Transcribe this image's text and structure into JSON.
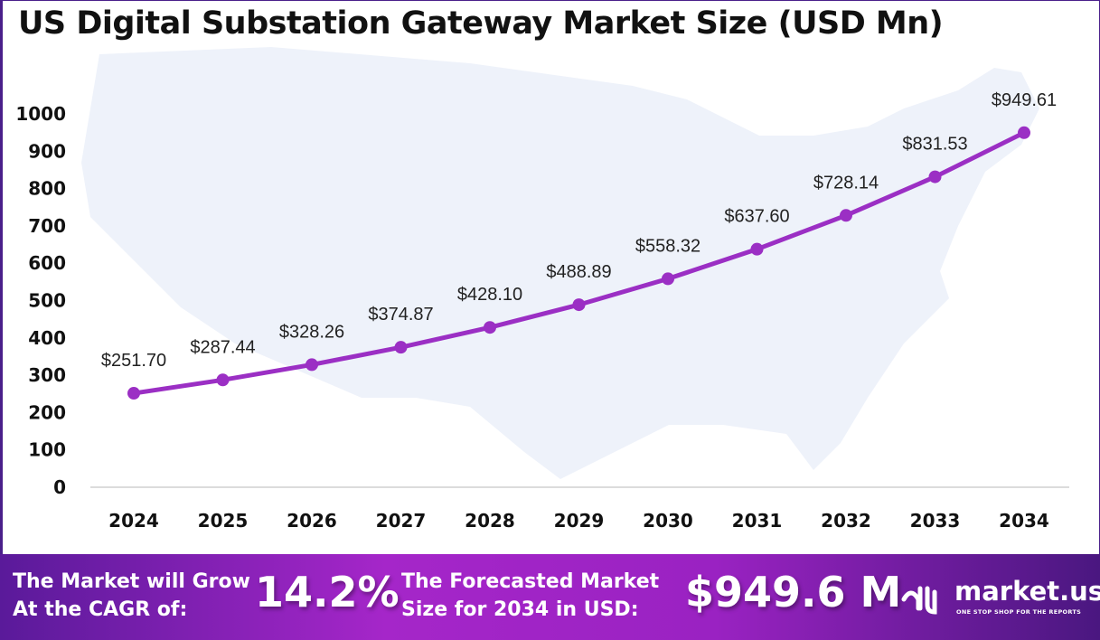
{
  "chart_data": {
    "type": "line",
    "title": "US Digital Substation Gateway Market Size (USD Mn)",
    "categories": [
      "2024",
      "2025",
      "2026",
      "2027",
      "2028",
      "2029",
      "2030",
      "2031",
      "2032",
      "2033",
      "2034"
    ],
    "values": [
      251.7,
      287.44,
      328.26,
      374.87,
      428.1,
      488.89,
      558.32,
      637.6,
      728.14,
      831.53,
      949.61
    ],
    "data_labels": [
      "$251.70",
      "$287.44",
      "$328.26",
      "$374.87",
      "$428.10",
      "$488.89",
      "$558.32",
      "$637.60",
      "$728.14",
      "$831.53",
      "$949.61"
    ],
    "yticks": [
      "0",
      "100",
      "200",
      "300",
      "400",
      "500",
      "600",
      "700",
      "800",
      "900",
      "1000"
    ],
    "ylim": [
      0,
      1000
    ],
    "grid": false,
    "line_color": "#9b2fc4",
    "background": "US map silhouette"
  },
  "footer": {
    "cagr_text_1": "The Market will Grow",
    "cagr_text_2": "At the CAGR of:",
    "cagr_value": "14.2%",
    "forecast_text_1": "The Forecasted Market",
    "forecast_text_2": "Size for 2034 in USD:",
    "forecast_value": "$949.6 M",
    "logo_name": "market.us",
    "logo_tagline": "ONE STOP SHOP FOR THE REPORTS"
  }
}
